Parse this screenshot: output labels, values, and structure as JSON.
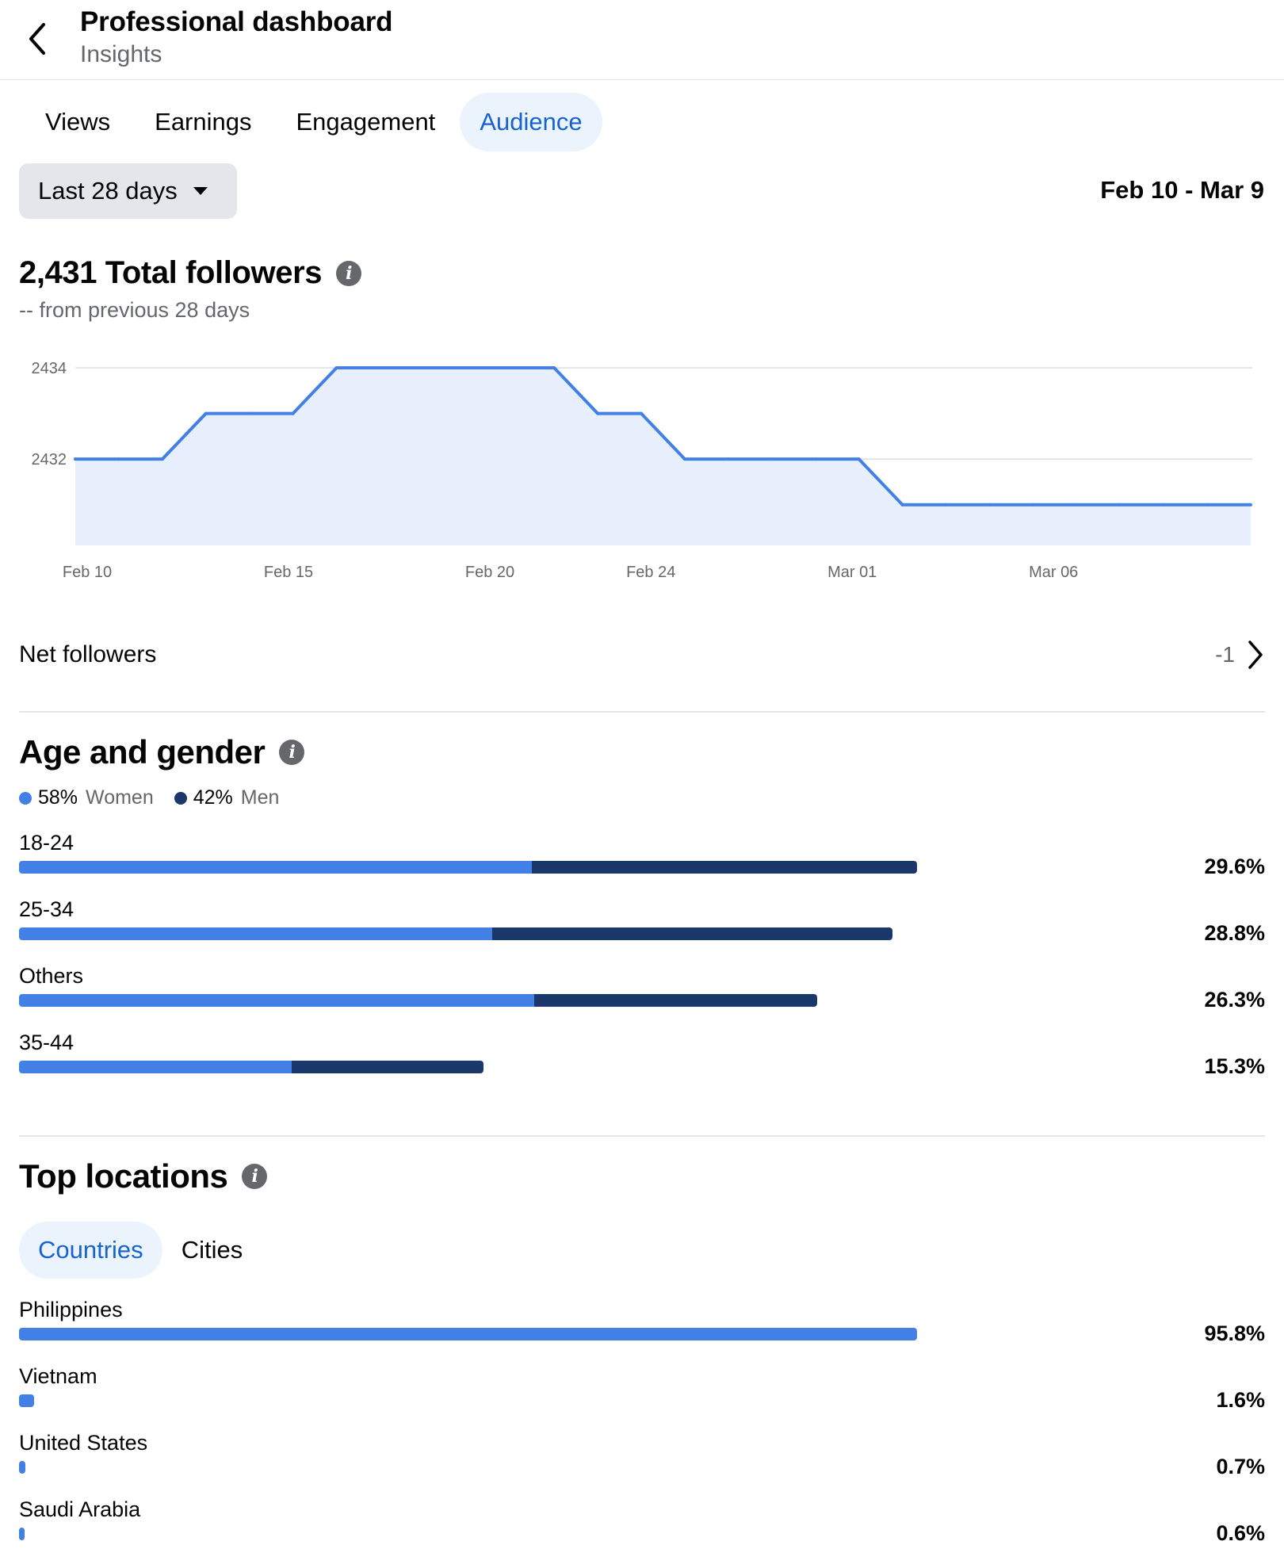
{
  "header": {
    "title": "Professional dashboard",
    "subtitle": "Insights",
    "back_icon": "chevron-left-icon"
  },
  "tabs": [
    {
      "label": "Views",
      "active": false
    },
    {
      "label": "Earnings",
      "active": false
    },
    {
      "label": "Engagement",
      "active": false
    },
    {
      "label": "Audience",
      "active": true
    }
  ],
  "filter": {
    "range_label": "Last 28 days",
    "date_range": "Feb 10 - Mar 9"
  },
  "followers": {
    "title": "2,431 Total followers",
    "change_note": "-- from previous 28 days"
  },
  "chart_data": {
    "type": "area",
    "title": "",
    "xlabel": "",
    "ylabel": "",
    "x_tick_labels": [
      "Feb 10",
      "Feb 15",
      "Feb 20",
      "Feb 24",
      "Mar 01",
      "Mar 06"
    ],
    "y_tick_labels": [
      "2434",
      "2432"
    ],
    "ylim": [
      2430.7,
      2434
    ],
    "grid": true,
    "x": [
      "Feb 10",
      "Feb 11",
      "Feb 12",
      "Feb 13",
      "Feb 14",
      "Feb 15",
      "Feb 16",
      "Feb 17",
      "Feb 18",
      "Feb 19",
      "Feb 20",
      "Feb 21",
      "Feb 22",
      "Feb 23",
      "Feb 24",
      "Feb 25",
      "Feb 26",
      "Feb 27",
      "Feb 28",
      "Mar 01",
      "Mar 02",
      "Mar 03",
      "Mar 04",
      "Mar 05",
      "Mar 06",
      "Mar 07",
      "Mar 08",
      "Mar 09"
    ],
    "values": [
      2432,
      2432,
      2432,
      2433,
      2433,
      2433,
      2434,
      2434,
      2434,
      2434,
      2434,
      2434,
      2433,
      2433,
      2432,
      2432,
      2432,
      2432,
      2432,
      2431,
      2431,
      2431,
      2431,
      2431,
      2431,
      2431,
      2431,
      2431
    ],
    "colors": {
      "line": "#4280e6",
      "fill": "#e6effb"
    }
  },
  "net_followers": {
    "label": "Net followers",
    "value": "-1"
  },
  "age_gender": {
    "title": "Age and gender",
    "legend": [
      {
        "pct": "58%",
        "name": "Women",
        "color": "#4280e6"
      },
      {
        "pct": "42%",
        "name": "Men",
        "color": "#1b376b"
      }
    ],
    "rows": [
      {
        "label": "18-24",
        "pct": "29.6%",
        "total": 29.6,
        "women_share": 0.571
      },
      {
        "label": "25-34",
        "pct": "28.8%",
        "total": 28.8,
        "women_share": 0.542
      },
      {
        "label": "Others",
        "pct": "26.3%",
        "total": 26.3,
        "women_share": 0.646
      },
      {
        "label": "35-44",
        "pct": "15.3%",
        "total": 15.3,
        "women_share": 0.588
      }
    ]
  },
  "locations": {
    "title": "Top locations",
    "tabs": [
      {
        "label": "Countries",
        "active": true
      },
      {
        "label": "Cities",
        "active": false
      }
    ],
    "rows": [
      {
        "label": "Philippines",
        "pct": "95.8%",
        "value": 95.8
      },
      {
        "label": "Vietnam",
        "pct": "1.6%",
        "value": 1.6
      },
      {
        "label": "United States",
        "pct": "0.7%",
        "value": 0.7
      },
      {
        "label": "Saudi Arabia",
        "pct": "0.6%",
        "value": 0.6
      }
    ]
  }
}
